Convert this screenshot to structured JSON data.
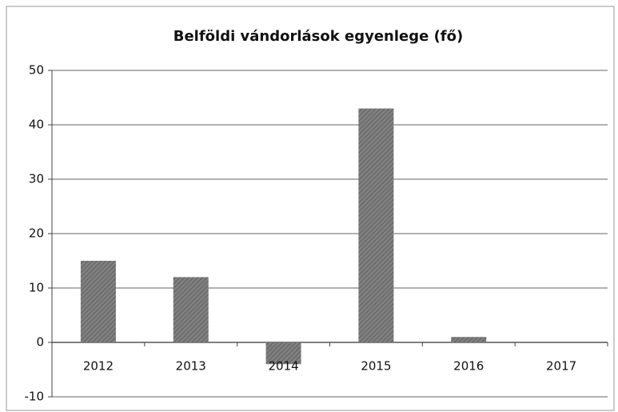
{
  "chart_data": {
    "type": "bar",
    "title": "Belföldi vándorlások egyenlege (fő)",
    "categories": [
      "2012",
      "2013",
      "2014",
      "2015",
      "2016",
      "2017"
    ],
    "values": [
      15,
      12,
      -4,
      43,
      1,
      0
    ],
    "color": "#808080",
    "ylim": [
      -10,
      50
    ],
    "yticks": [
      -10,
      0,
      10,
      20,
      30,
      40,
      50
    ],
    "grid": true
  }
}
